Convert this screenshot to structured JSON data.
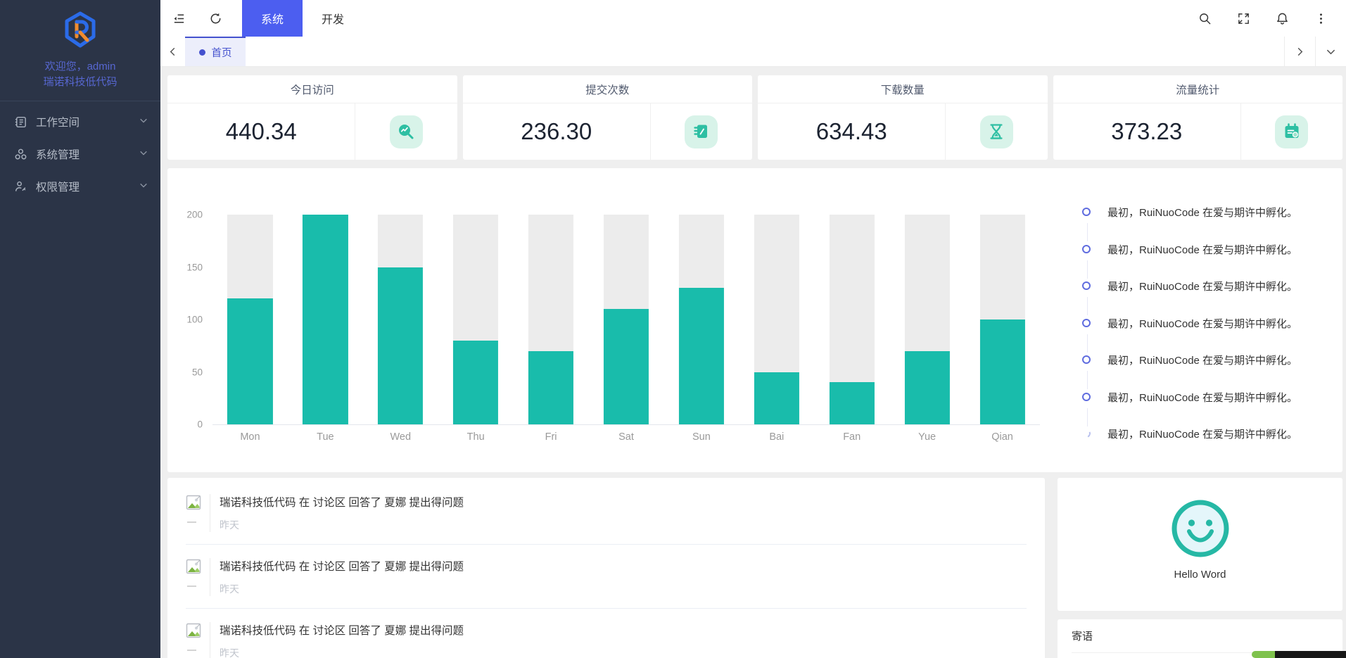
{
  "sidebar": {
    "welcome_line1": "欢迎您，admin",
    "welcome_line2": "瑞诺科技低代码",
    "menu": [
      {
        "label": "工作空间",
        "icon": "workspace-icon"
      },
      {
        "label": "系统管理",
        "icon": "system-icon"
      },
      {
        "label": "权限管理",
        "icon": "permission-icon"
      }
    ]
  },
  "header": {
    "tabs": [
      {
        "label": "系统",
        "active": true
      },
      {
        "label": "开发",
        "active": false
      }
    ],
    "icons": [
      "collapse-icon",
      "refresh-icon",
      "search-icon",
      "fullscreen-icon",
      "bell-icon",
      "more-icon"
    ]
  },
  "tabbar": {
    "active_tab": "首页",
    "icons": [
      "chevron-left-icon",
      "chevron-right-icon",
      "chevron-down-icon"
    ]
  },
  "stats": [
    {
      "label": "今日访问",
      "value": "440.34",
      "icon": "trend-search-icon"
    },
    {
      "label": "提交次数",
      "value": "236.30",
      "icon": "notebook-icon"
    },
    {
      "label": "下载数量",
      "value": "634.43",
      "icon": "hourglass-icon"
    },
    {
      "label": "流量统计",
      "value": "373.23",
      "icon": "calendar-search-icon"
    }
  ],
  "chart_data": {
    "type": "bar",
    "categories": [
      "Mon",
      "Tue",
      "Wed",
      "Thu",
      "Fri",
      "Sat",
      "Sun",
      "Bai",
      "Fan",
      "Yue",
      "Qian"
    ],
    "values": [
      120,
      200,
      150,
      80,
      70,
      110,
      130,
      50,
      40,
      70,
      100
    ],
    "title": "",
    "xlabel": "",
    "ylabel": "",
    "ylim": [
      0,
      200
    ],
    "yticks": [
      0,
      50,
      100,
      150,
      200
    ],
    "grid": false,
    "legend": false,
    "bar_color": "#19bcab",
    "track_color": "#ececec",
    "track_max": 200
  },
  "timeline": {
    "items": [
      "最初，RuiNuoCode 在爱与期许中孵化。",
      "最初，RuiNuoCode 在爱与期许中孵化。",
      "最初，RuiNuoCode 在爱与期许中孵化。",
      "最初，RuiNuoCode 在爱与期许中孵化。",
      "最初，RuiNuoCode 在爱与期许中孵化。",
      "最初，RuiNuoCode 在爱与期许中孵化。",
      "最初，RuiNuoCode 在爱与期许中孵化。"
    ]
  },
  "activities": {
    "items": [
      {
        "text": "瑞诺科技低代码 在 讨论区 回答了 夏娜 提出得问题",
        "time": "昨天"
      },
      {
        "text": "瑞诺科技低代码 在 讨论区 回答了 夏娜 提出得问题",
        "time": "昨天"
      },
      {
        "text": "瑞诺科技低代码 在 讨论区 回答了 夏娜 提出得问题",
        "time": "昨天"
      }
    ]
  },
  "greeting_card": {
    "label": "Hello Word"
  },
  "message_panel": {
    "title": "寄语"
  },
  "colors": {
    "accent_blue": "#4c5ef0",
    "sidebar_bg": "#2b3447",
    "welcome_text": "#5767d1",
    "teal": "#19bcab",
    "icon_teal": "#2ebfa3",
    "icon_teal_bg": "#d8f3e9",
    "timeline_node": "#5f6cdf",
    "corner_green": "#7fc24d",
    "corner_black": "#161616"
  }
}
